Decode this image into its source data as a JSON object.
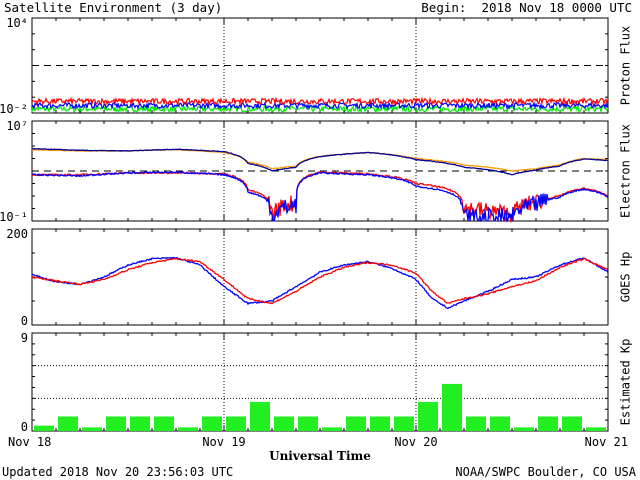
{
  "header": {
    "title": "Satellite Environment (3 day)",
    "begin": "Begin:  2018 Nov 18 0000 UTC"
  },
  "footer": {
    "updated": "Updated 2018 Nov 20 23:56:03 UTC",
    "credit": "NOAA/SWPC Boulder, CO USA"
  },
  "colors": {
    "red": "#ff0000",
    "blue": "#0000ff",
    "green": "#00ee00",
    "orange": "#ff9900",
    "navy": "#000099",
    "bar": "#22ee22"
  },
  "chart_data": [
    {
      "id": "proton",
      "type": "line",
      "ylabel": "Proton Flux",
      "yscale": "log",
      "ytick_labels": [
        "10⁴",
        "10⁻²"
      ],
      "ylim": [
        0.01,
        10000
      ],
      "threshold": 10,
      "series": [
        {
          "color": "red",
          "values": [
            0.055,
            0.055,
            0.055,
            0.055,
            0.055,
            0.055,
            0.055,
            0.055,
            0.055,
            0.055,
            0.055,
            0.055,
            0.055,
            0.055,
            0.055,
            0.055,
            0.055,
            0.055,
            0.055
          ]
        },
        {
          "color": "blue",
          "values": [
            0.03,
            0.03,
            0.03,
            0.03,
            0.03,
            0.03,
            0.03,
            0.03,
            0.03,
            0.03,
            0.03,
            0.03,
            0.03,
            0.03,
            0.03,
            0.03,
            0.03,
            0.03,
            0.03
          ]
        },
        {
          "color": "green",
          "values": [
            0.018,
            0.018,
            0.018,
            0.018,
            0.018,
            0.018,
            0.018,
            0.018,
            0.018,
            0.018,
            0.018,
            0.018,
            0.018,
            0.018,
            0.018,
            0.018,
            0.018,
            0.018,
            0.018
          ]
        }
      ]
    },
    {
      "id": "electron",
      "type": "line",
      "ylabel": "Electron Flux",
      "yscale": "log",
      "ytick_labels": [
        "10⁷",
        "10⁻¹"
      ],
      "ylim": [
        0.1,
        10000000
      ],
      "threshold": 1000,
      "x_hours": [
        0,
        6,
        12,
        18,
        24,
        27,
        30,
        33,
        36,
        42,
        48,
        54,
        60,
        63,
        66,
        69,
        72
      ],
      "series": [
        {
          "color": "orange",
          "values": [
            50000,
            40000,
            40000,
            50000,
            30000,
            5000,
            1500,
            2500,
            15000,
            30000,
            10000,
            3000,
            1000,
            1500,
            3000,
            10000,
            8000
          ]
        },
        {
          "color": "navy",
          "values": [
            60000,
            45000,
            40000,
            55000,
            35000,
            4000,
            1000,
            2000,
            14000,
            30000,
            8000,
            2000,
            500,
            1200,
            2500,
            9000,
            7000
          ]
        },
        {
          "color": "red",
          "values": [
            500,
            500,
            700,
            700,
            600,
            30,
            0.3,
            3,
            800,
            600,
            100,
            1,
            0.3,
            3,
            10,
            40,
            10
          ]
        },
        {
          "color": "blue",
          "values": [
            500,
            400,
            700,
            800,
            500,
            20,
            0.2,
            2,
            700,
            500,
            60,
            0.2,
            0.2,
            2,
            8,
            35,
            8
          ]
        }
      ]
    },
    {
      "id": "goes-hp",
      "type": "line",
      "ylabel": "GOES Hp",
      "ytick_labels": [
        "200",
        "0"
      ],
      "ylim": [
        0,
        200
      ],
      "x_hours": [
        0,
        3,
        6,
        9,
        12,
        15,
        18,
        21,
        24,
        27,
        30,
        33,
        36,
        39,
        42,
        45,
        48,
        50,
        52,
        54,
        57,
        60,
        63,
        66,
        69,
        72
      ],
      "series": [
        {
          "color": "blue",
          "values": [
            105,
            90,
            85,
            100,
            125,
            138,
            140,
            125,
            80,
            45,
            50,
            80,
            110,
            125,
            132,
            118,
            95,
            55,
            35,
            50,
            70,
            95,
            100,
            125,
            140,
            110
          ]
        },
        {
          "color": "red",
          "values": [
            100,
            92,
            85,
            95,
            115,
            130,
            138,
            132,
            95,
            55,
            45,
            70,
            100,
            120,
            130,
            125,
            108,
            70,
            45,
            55,
            65,
            80,
            92,
            120,
            138,
            115
          ]
        }
      ]
    },
    {
      "id": "kp",
      "type": "bar",
      "ylabel": "Estimated Kp",
      "ytick_labels": [
        "9",
        "0"
      ],
      "ylim": [
        0,
        9
      ],
      "values": [
        0.5,
        1.33,
        0.33,
        1.33,
        1.33,
        1.33,
        0.33,
        1.33,
        1.33,
        2.67,
        1.33,
        1.33,
        0.33,
        1.33,
        1.33,
        1.33,
        2.67,
        4.33,
        1.33,
        1.33,
        0.33,
        1.33,
        1.33,
        0.33
      ]
    }
  ],
  "x_axis": {
    "label": "Universal Time",
    "tick_labels": [
      "Nov 18",
      "Nov 19",
      "Nov 20",
      "Nov 21"
    ]
  }
}
